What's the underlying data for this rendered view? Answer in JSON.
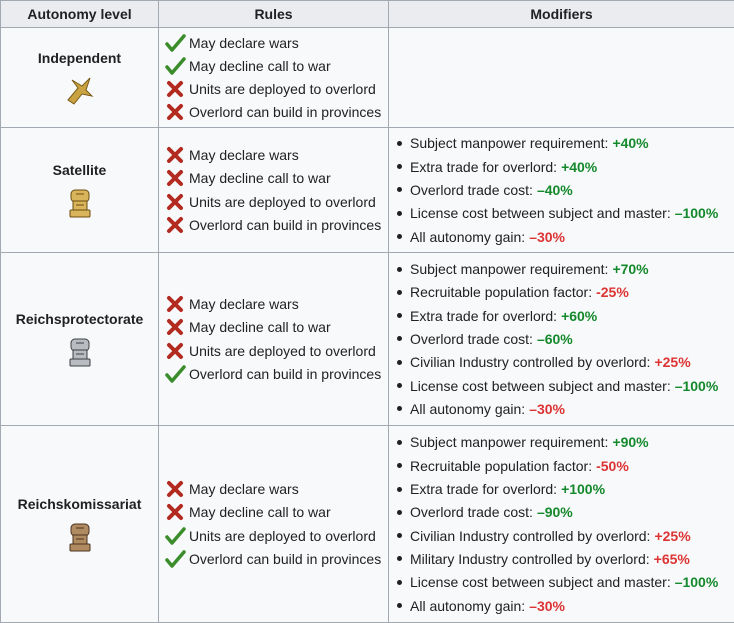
{
  "table": {
    "headers": [
      "Autonomy level",
      "Rules",
      "Modifiers"
    ],
    "rows": [
      {
        "name": "Independent",
        "rules": [
          {
            "text": "May declare wars",
            "allowed": true
          },
          {
            "text": "May decline call to war",
            "allowed": true
          },
          {
            "text": "Units are deployed to overlord",
            "allowed": false
          },
          {
            "text": "Overlord can build in provinces",
            "allowed": false
          }
        ],
        "modifiers": []
      },
      {
        "name": "Satellite",
        "rules": [
          {
            "text": "May declare wars",
            "allowed": false
          },
          {
            "text": "May decline call to war",
            "allowed": false
          },
          {
            "text": "Units are deployed to overlord",
            "allowed": false
          },
          {
            "text": "Overlord can build in provinces",
            "allowed": false
          }
        ],
        "modifiers": [
          {
            "label": "Subject manpower requirement:",
            "value": "+40%",
            "color": "#14892c"
          },
          {
            "label": "Extra trade for overlord:",
            "value": "+40%",
            "color": "#14892c"
          },
          {
            "label": "Overlord trade cost:",
            "value": "–40%",
            "color": "#14892c"
          },
          {
            "label": "License cost between subject and master:",
            "value": "–100%",
            "color": "#14892c"
          },
          {
            "label": "All autonomy gain:",
            "value": "–30%",
            "color": "#d33"
          }
        ]
      },
      {
        "name": "Reichsprotectorate",
        "rules": [
          {
            "text": "May declare wars",
            "allowed": false
          },
          {
            "text": "May decline call to war",
            "allowed": false
          },
          {
            "text": "Units are deployed to overlord",
            "allowed": false
          },
          {
            "text": "Overlord can build in provinces",
            "allowed": true
          }
        ],
        "modifiers": [
          {
            "label": "Subject manpower requirement:",
            "value": "+70%",
            "color": "#14892c"
          },
          {
            "label": "Recruitable population factor:",
            "value": "-25%",
            "color": "#d33"
          },
          {
            "label": "Extra trade for overlord:",
            "value": "+60%",
            "color": "#14892c"
          },
          {
            "label": "Overlord trade cost:",
            "value": "–60%",
            "color": "#14892c"
          },
          {
            "label": "Civilian Industry controlled by overlord:",
            "value": "+25%",
            "color": "#d33"
          },
          {
            "label": "License cost between subject and master:",
            "value": "–100%",
            "color": "#14892c"
          },
          {
            "label": "All autonomy gain:",
            "value": "–30%",
            "color": "#d33"
          }
        ]
      },
      {
        "name": "Reichskomissariat",
        "rules": [
          {
            "text": "May declare wars",
            "allowed": false
          },
          {
            "text": "May decline call to war",
            "allowed": false
          },
          {
            "text": "Units are deployed to overlord",
            "allowed": true
          },
          {
            "text": "Overlord can build in provinces",
            "allowed": true
          }
        ],
        "modifiers": [
          {
            "label": "Subject manpower requirement:",
            "value": "+90%",
            "color": "#14892c"
          },
          {
            "label": "Recruitable population factor:",
            "value": "-50%",
            "color": "#d33"
          },
          {
            "label": "Extra trade for overlord:",
            "value": "+100%",
            "color": "#14892c"
          },
          {
            "label": "Overlord trade cost:",
            "value": "–90%",
            "color": "#14892c"
          },
          {
            "label": "Civilian Industry controlled by overlord:",
            "value": "+25%",
            "color": "#d33"
          },
          {
            "label": "Military Industry controlled by overlord:",
            "value": "+65%",
            "color": "#d33"
          },
          {
            "label": "License cost between subject and master:",
            "value": "–100%",
            "color": "#14892c"
          },
          {
            "label": "All autonomy gain:",
            "value": "–30%",
            "color": "#d33"
          }
        ]
      }
    ]
  }
}
